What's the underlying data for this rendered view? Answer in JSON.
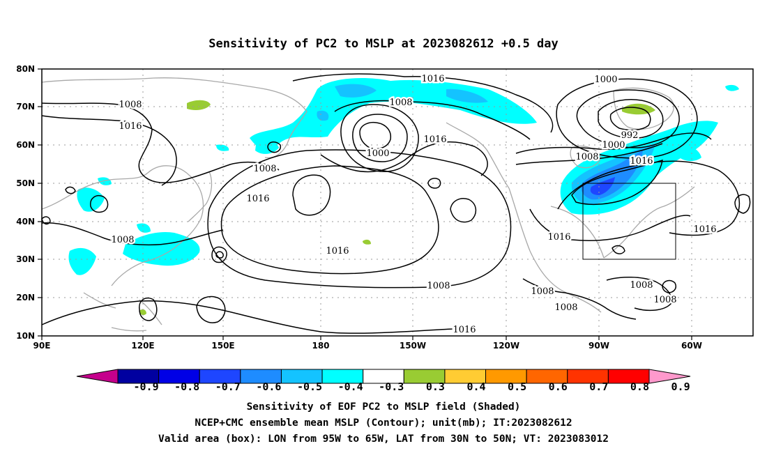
{
  "title": "Sensitivity of PC2 to MSLP at 2023082612 +0.5 day",
  "lat_ticks": [
    "10N",
    "20N",
    "30N",
    "40N",
    "50N",
    "60N",
    "70N",
    "80N"
  ],
  "lon_ticks": [
    "90E",
    "120E",
    "150E",
    "180",
    "150W",
    "120W",
    "90W",
    "60W"
  ],
  "contour_labels": [
    "1016",
    "1000",
    "1008",
    "1008",
    "1016",
    "1016",
    "1000",
    "1008",
    "992",
    "1000",
    "1008",
    "1016",
    "1008",
    "1016",
    "1016",
    "1008",
    "1016",
    "1016",
    "1008",
    "1008",
    "1008",
    "1008",
    "1016",
    "1008"
  ],
  "colorbar": {
    "labels": [
      "-0.9",
      "-0.8",
      "-0.7",
      "-0.6",
      "-0.5",
      "-0.4",
      "-0.3",
      "0.3",
      "0.4",
      "0.5",
      "0.6",
      "0.7",
      "0.8",
      "0.9"
    ],
    "colors": [
      "#c5008c",
      "#0000a0",
      "#0000e6",
      "#1e46ff",
      "#1e8cff",
      "#14c3ff",
      "#00ffff",
      "#ffffff",
      "#99cc33",
      "#ffcc33",
      "#ff9900",
      "#ff6600",
      "#ff3300",
      "#ff0000",
      "#ff99cc"
    ]
  },
  "captions": [
    "Sensitivity of EOF PC2 to MSLP field (Shaded)",
    "NCEP+CMC ensemble mean MSLP (Contour); unit(mb); IT:2023082612",
    "Valid area (box): LON from 95W to 65W, LAT from 30N to 50N; VT: 2023083012"
  ]
}
